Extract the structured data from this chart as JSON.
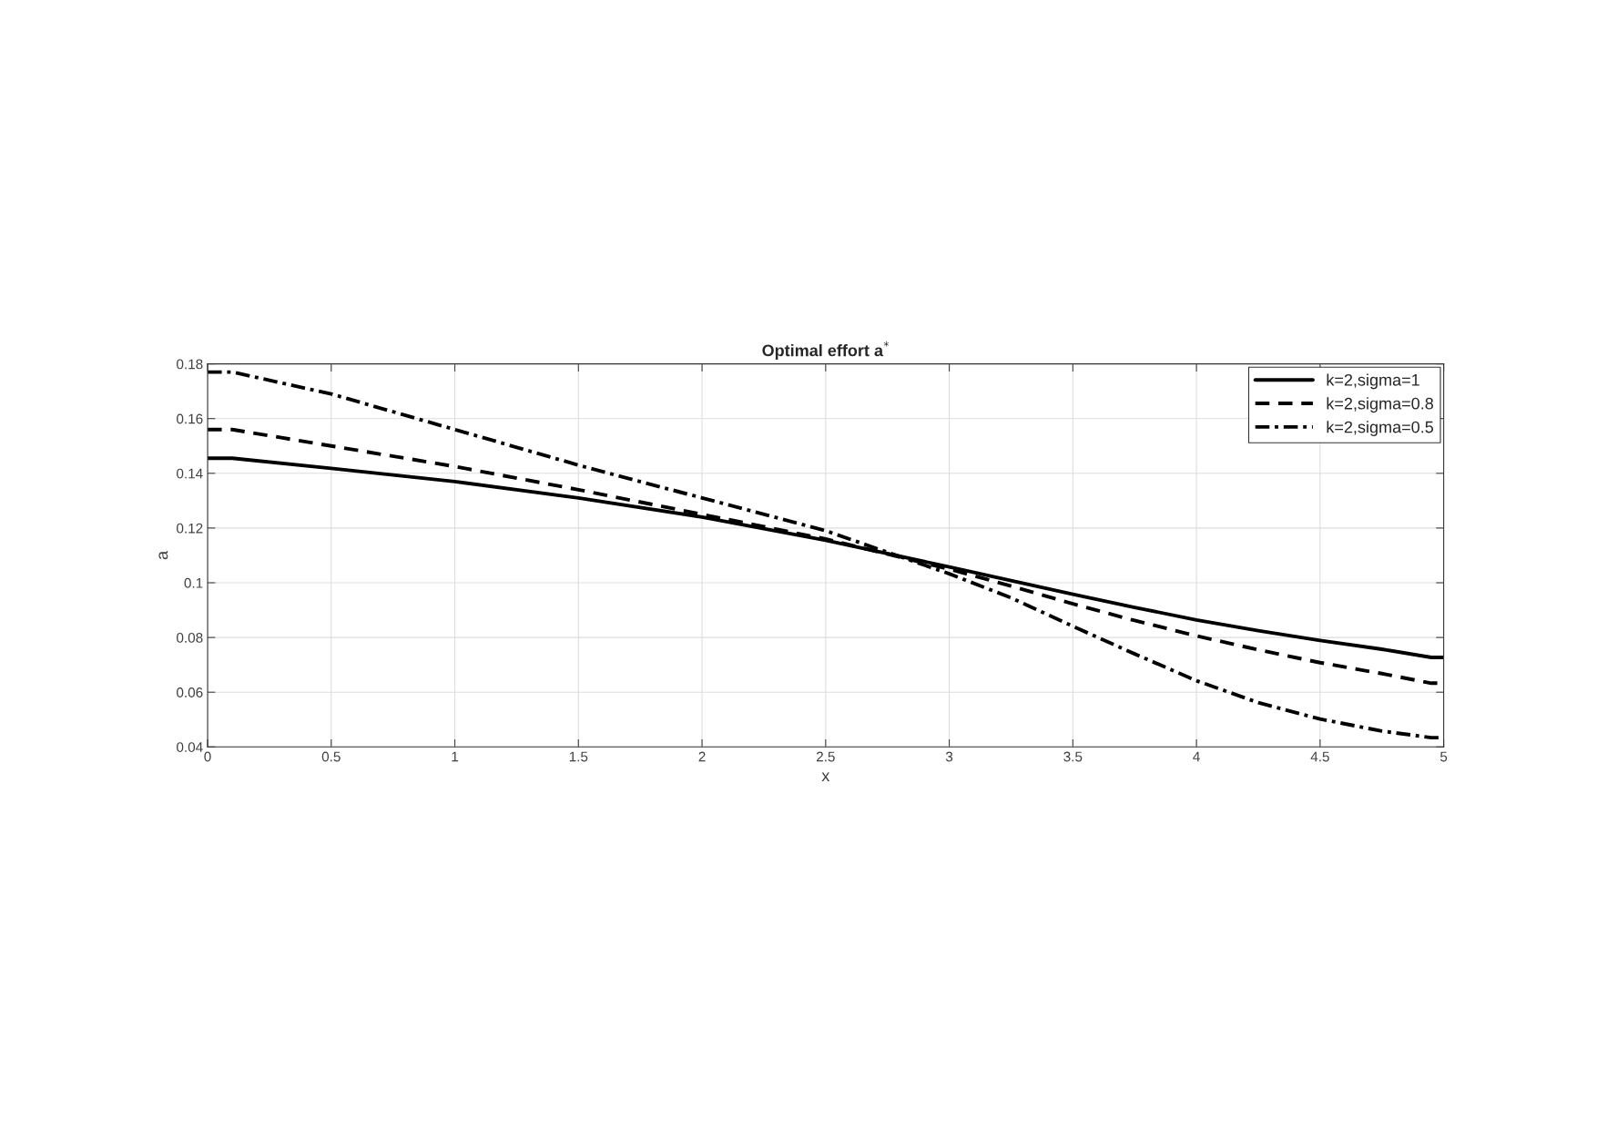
{
  "chart_data": {
    "type": "line",
    "title": "Optimal effort a$^{*}$",
    "xlabel": "x",
    "ylabel": "a",
    "x": [
      0,
      0.1,
      0.5,
      1,
      1.5,
      2,
      2.5,
      3,
      3.25,
      3.5,
      3.75,
      4,
      4.25,
      4.5,
      4.75,
      4.95,
      5
    ],
    "series": [
      {
        "name": "k=2,sigma=1",
        "color": "#000000",
        "line_style": "solid",
        "values": [
          0.1455,
          0.1455,
          0.1418,
          0.137,
          0.131,
          0.124,
          0.1155,
          0.1058,
          0.1008,
          0.0958,
          0.091,
          0.0864,
          0.0825,
          0.0789,
          0.0757,
          0.0727,
          0.0727
        ]
      },
      {
        "name": "k=2,sigma=0.8",
        "color": "#000000",
        "line_style": "dashed",
        "values": [
          0.156,
          0.156,
          0.15,
          0.1425,
          0.134,
          0.125,
          0.116,
          0.105,
          0.0988,
          0.0923,
          0.0862,
          0.0806,
          0.0755,
          0.0708,
          0.0668,
          0.0633,
          0.0633
        ]
      },
      {
        "name": "k=2,sigma=0.5",
        "color": "#000000",
        "line_style": "dashdot",
        "values": [
          0.177,
          0.177,
          0.169,
          0.156,
          0.143,
          0.131,
          0.119,
          0.1033,
          0.0945,
          0.0841,
          0.074,
          0.0642,
          0.0562,
          0.0502,
          0.0458,
          0.0434,
          0.0434
        ]
      }
    ],
    "xlim": [
      0,
      5
    ],
    "ylim": [
      0.04,
      0.18
    ],
    "xticks": [
      0,
      0.5,
      1,
      1.5,
      2,
      2.5,
      3,
      3.5,
      4,
      4.5,
      5
    ],
    "yticks": [
      0.04,
      0.06,
      0.08,
      0.1,
      0.12,
      0.14,
      0.16,
      0.18
    ],
    "grid": true,
    "legend": "top right",
    "marker": "none"
  }
}
